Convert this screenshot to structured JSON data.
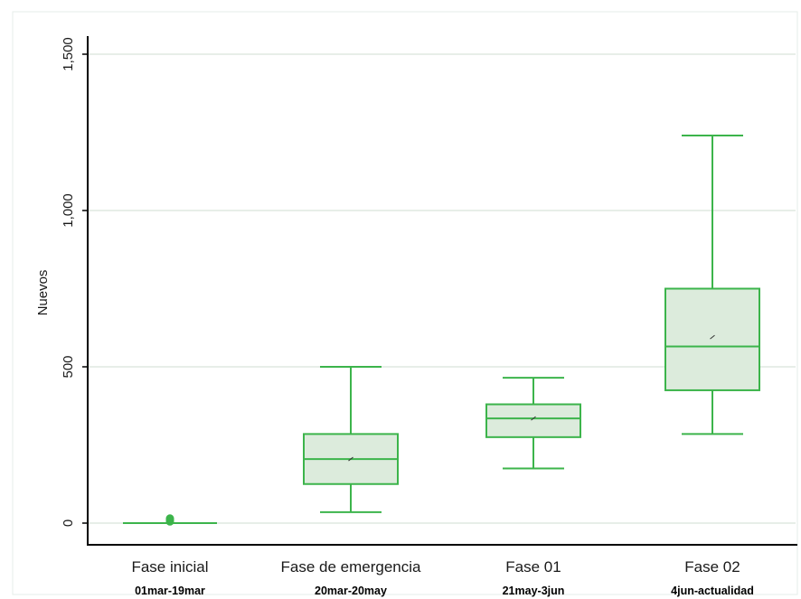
{
  "chart_data": {
    "type": "box",
    "ylabel": "Nuevos",
    "xlabel": "",
    "title": "",
    "ylim": [
      0,
      1500
    ],
    "yticks": [
      0,
      500,
      1000,
      1500
    ],
    "ytick_labels": [
      "0",
      "500",
      "1,000",
      "1,500"
    ],
    "grid": "horizontal",
    "categories": [
      "Fase inicial",
      "Fase de emergencia",
      "Fase 01",
      "Fase 02"
    ],
    "category_periods": [
      "01mar-19mar",
      "20mar-20may",
      "21may-3jun",
      "4jun-actualidad"
    ],
    "boxes": [
      {
        "min": 0,
        "q1": 0,
        "median": 0,
        "q3": 0,
        "max": 0,
        "mean": 0,
        "outliers": [
          5,
          10,
          12,
          15
        ]
      },
      {
        "min": 35,
        "q1": 125,
        "median": 205,
        "q3": 285,
        "max": 500,
        "mean": 205,
        "outliers": []
      },
      {
        "min": 175,
        "q1": 275,
        "median": 335,
        "q3": 380,
        "max": 465,
        "mean": 335,
        "outliers": []
      },
      {
        "min": 285,
        "q1": 425,
        "median": 565,
        "q3": 750,
        "max": 1240,
        "mean": 595,
        "outliers": []
      }
    ],
    "colors": {
      "line": "#3cb44b",
      "fill": "#dcebdc",
      "grid": "#dfe8e1",
      "axis": "#000000"
    }
  }
}
